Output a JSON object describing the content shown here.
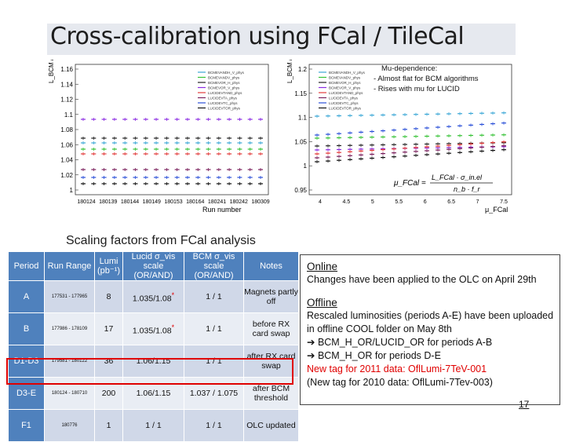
{
  "title": "Cross-calibration using FCal / TileCal",
  "left_plot": {
    "ylabel": "L_BCM / L_FCal",
    "xlabel": "Run number",
    "yticks": [
      "1.16",
      "1.14",
      "1.12",
      "1.1",
      "1.08",
      "1.06",
      "1.04",
      "1.02",
      "1"
    ],
    "xticks": [
      "180124",
      "180139",
      "180144",
      "180149",
      "180153",
      "180164",
      "180241",
      "180242",
      "180309"
    ],
    "legend": [
      "BCMEVANDH_V_phys",
      "BCMEVANDV_phys",
      "BCMEVOR_H_phys",
      "BCMEVOR_V_phys",
      "LUCIDEVTAND_phys",
      "LUCIDEVTA_phys",
      "LUCIDEVTC_phys",
      "LUCIDEVTOR_phys"
    ]
  },
  "right_plot": {
    "ylabel": "L_BCM / L_FCal",
    "xlabel": "μ_FCal",
    "yticks": [
      "1.2",
      "1.15",
      "1.1",
      "1.05",
      "1",
      "0.95"
    ],
    "xticks": [
      "4",
      "4.5",
      "5",
      "5.5",
      "6",
      "6.5",
      "7",
      "7.5"
    ],
    "legend": [
      "BCMEVANDH_V_phys",
      "BCMEVANDV_phys",
      "BCMEVOR_H_phys",
      "BCMEVOR_V_phys",
      "LUCIDEVTAND_phys",
      "LUCIDEVTA_phys",
      "LUCIDEVTC_phys",
      "LUCIDEVTOR_phys"
    ],
    "annotation_title": "Mu-dependence:",
    "annotation_lines": [
      "- Almost flat for BCM algorithms",
      "- Rises with mu for LUCID"
    ],
    "formula_lhs": "μ_FCal =",
    "formula_num": "L_FCal · σ_in.el",
    "formula_den": "n_b · f_r"
  },
  "subtitle": "Scaling factors from FCal analysis",
  "table": {
    "headers": [
      "Period",
      "Run Range",
      "Lumi (pb⁻¹)",
      "Lucid σ_vis scale (OR/AND)",
      "BCM σ_vis scale (OR/AND)",
      "Notes"
    ],
    "rows": [
      {
        "period": "A",
        "range": "177531 - 177965",
        "lumi": "8",
        "lucid": "1.035/1.08",
        "lucid_mark": "*",
        "bcm": "1 / 1",
        "notes": "Magnets partly off"
      },
      {
        "period": "B",
        "range": "177986 - 178109",
        "lumi": "17",
        "lucid": "1.035/1.08",
        "lucid_mark": "*",
        "bcm": "1 / 1",
        "notes": "before RX card swap"
      },
      {
        "period": "D1-D3",
        "range": "179581 - 180122",
        "lumi": "36",
        "lucid": "1.06/1.15",
        "lucid_mark": "",
        "bcm": "1 / 1",
        "notes": "after RX card swap"
      },
      {
        "period": "D3-E",
        "range": "180124 - 180710",
        "lumi": "200",
        "lucid": "1.06/1.15",
        "lucid_mark": "",
        "bcm": "1.037 / 1.075",
        "notes": "after BCM threshold"
      },
      {
        "period": "F1",
        "range": "180776",
        "lumi": "1",
        "lucid": "1 / 1",
        "lucid_mark": "",
        "bcm": "1 / 1",
        "notes": "OLC updated"
      }
    ]
  },
  "notes_box": {
    "online_heading": "Online",
    "online_text": "Changes have been applied to the OLC on April 29th",
    "offline_heading": "Offline",
    "offline_text_1": "Rescaled luminosities (periods A-E) have been uploaded",
    "offline_text_2": "in offline COOL folder on May 8th",
    "bullet_1": "➔ BCM_H_OR/LUCID_OR for periods A-B",
    "bullet_2": "➔ BCM_H_OR for periods D-E",
    "new_tag": "New tag for 2011 data: OflLumi-7TeV-001",
    "old_tag": "(New tag for 2010 data: OflLumi-7Tev-003)"
  },
  "page_number": "17",
  "colors": {
    "header_blue": "#4f81bd",
    "highlight_red": "#e00000",
    "title_bar": "#e6e9ef"
  }
}
